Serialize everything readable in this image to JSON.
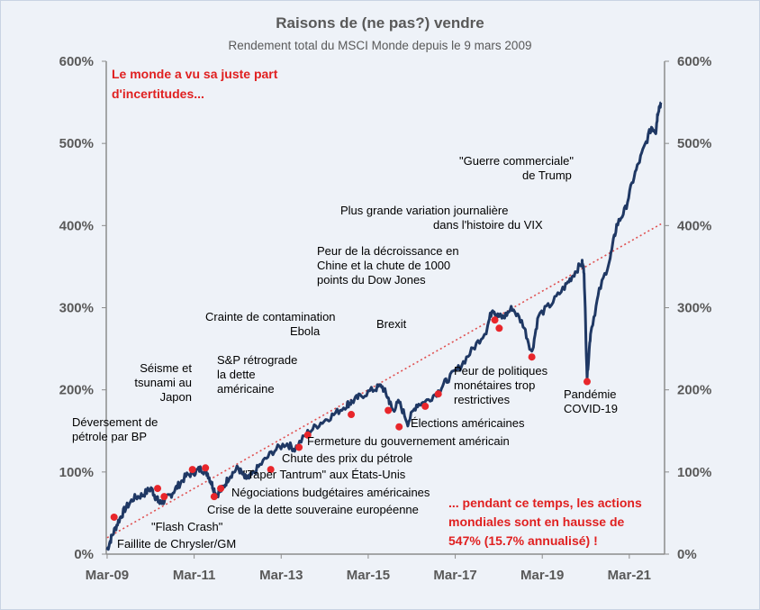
{
  "chart_data": {
    "type": "line",
    "title": "Raisons de (ne pas?) vendre",
    "subtitle": "Rendement total du MSCI Monde depuis le 9 mars 2009",
    "x_tick_labels": [
      "Mar-09",
      "Mar-11",
      "Mar-13",
      "Mar-15",
      "Mar-17",
      "Mar-19",
      "Mar-21"
    ],
    "y_tick_labels": [
      "0%",
      "100%",
      "200%",
      "300%",
      "400%",
      "500%",
      "600%"
    ],
    "ylim": [
      0,
      600
    ],
    "xlim": [
      2009.17,
      2022.0
    ],
    "grid": false,
    "series": [
      {
        "color": "#1f3864",
        "x": [
          2009.19,
          2009.3,
          2009.45,
          2009.6,
          2009.8,
          2010.0,
          2010.2,
          2010.3,
          2010.4,
          2010.5,
          2010.65,
          2010.8,
          2011.0,
          2011.2,
          2011.35,
          2011.5,
          2011.6,
          2011.7,
          2011.85,
          2012.0,
          2012.2,
          2012.35,
          2012.45,
          2012.7,
          2013.0,
          2013.3,
          2013.5,
          2013.8,
          2014.1,
          2014.4,
          2014.7,
          2014.8,
          2015.0,
          2015.3,
          2015.5,
          2015.65,
          2015.75,
          2015.9,
          2016.1,
          2016.3,
          2016.5,
          2016.8,
          2017.0,
          2017.3,
          2017.6,
          2017.9,
          2018.05,
          2018.15,
          2018.3,
          2018.5,
          2018.75,
          2018.95,
          2019.1,
          2019.4,
          2019.7,
          2019.9,
          2020.1,
          2020.15,
          2020.22,
          2020.3,
          2020.5,
          2020.75,
          2020.9,
          2021.1,
          2021.3,
          2021.5,
          2021.7,
          2021.8,
          2021.85,
          2021.92
        ],
        "values": [
          5,
          22,
          40,
          55,
          68,
          72,
          80,
          70,
          62,
          65,
          72,
          82,
          95,
          100,
          104,
          98,
          85,
          72,
          80,
          95,
          105,
          93,
          92,
          108,
          125,
          135,
          128,
          148,
          160,
          170,
          182,
          185,
          192,
          200,
          205,
          190,
          175,
          185,
          160,
          182,
          185,
          198,
          212,
          228,
          250,
          272,
          300,
          290,
          288,
          300,
          280,
          245,
          290,
          305,
          325,
          340,
          355,
          345,
          215,
          270,
          320,
          360,
          400,
          420,
          460,
          490,
          520,
          515,
          540,
          550
        ]
      }
    ],
    "trend": {
      "x": [
        2009.19,
        2021.92
      ],
      "values": [
        20,
        402
      ],
      "color": "#e05050"
    },
    "events": [
      {
        "label": "Faillite de Chrysler/GM",
        "x": 2009.35,
        "y": 45
      },
      {
        "label": "\"Flash Crash\"",
        "x": 2010.35,
        "y": 80
      },
      {
        "label": "Déversement de pétrole par BP",
        "x": 2010.5,
        "y": 70
      },
      {
        "label": "Séisme et tsunami au Japon",
        "x": 2011.15,
        "y": 103
      },
      {
        "label": "Crise de la dette souveraine européenne",
        "x": 2011.45,
        "y": 105
      },
      {
        "label": "Négociations budgétaires américaines",
        "x": 2011.65,
        "y": 70
      },
      {
        "label": "S&P rétrograde la dette américaine",
        "x": 2011.8,
        "y": 80
      },
      {
        "label": "\"Taper Tantrum\" aux États-Unis",
        "x": 2012.95,
        "y": 103
      },
      {
        "label": "Chute des prix du pétrole",
        "x": 2013.6,
        "y": 130
      },
      {
        "label": "Fermeture du gouvernement américain",
        "x": 2013.8,
        "y": 145
      },
      {
        "label": "Crainte de contamination Ebola",
        "x": 2014.8,
        "y": 170
      },
      {
        "label": "Peur de la décroissance en Chine et la chute de 1000 points du Dow Jones",
        "x": 2015.65,
        "y": 175
      },
      {
        "label": "Élections américaines",
        "x": 2015.9,
        "y": 155
      },
      {
        "label": "Brexit",
        "x": 2016.5,
        "y": 180
      },
      {
        "label": "Plus grande variation journalière dans l'histoire du VIX",
        "x": 2018.1,
        "y": 285
      },
      {
        "label": "\"Guerre commerciale\" de Trump",
        "x": 2018.2,
        "y": 275
      },
      {
        "label": "Peur de politiques monétaires trop restrictives",
        "x": 2018.95,
        "y": 240
      },
      {
        "label": "Pandémie COVID-19",
        "x": 2020.22,
        "y": 210
      },
      {
        "label": "",
        "x": 2016.8,
        "y": 195
      }
    ]
  },
  "annotations": {
    "red_top": [
      "Le monde a vu sa juste part",
      "d'incertitudes..."
    ],
    "red_bottom": [
      "... pendant ce temps, les actions",
      "mondiales sont en hausse de",
      "547% (15.7% annualisé) !"
    ],
    "labels": [
      [
        "Faillite de Chrysler/GM"
      ],
      [
        "\"Flash Crash\""
      ],
      [
        "Déversement de",
        "pétrole par BP"
      ],
      [
        "Séisme et",
        "tsunami au",
        "Japon"
      ],
      [
        "Crise de la dette souveraine européenne"
      ],
      [
        "Négociations budgétaires américaines"
      ],
      [
        "S&P rétrograde",
        "la dette",
        "américaine"
      ],
      [
        "\"Taper Tantrum\" aux États-Unis"
      ],
      [
        "Chute des prix du pétrole"
      ],
      [
        "Fermeture du gouvernement américain"
      ],
      [
        "Crainte de contamination",
        "Ebola"
      ],
      [
        "Peur de la décroissance en",
        "Chine et la chute de 1000",
        "points du Dow Jones"
      ],
      [
        "Élections américaines"
      ],
      [
        "Brexit"
      ],
      [
        "Plus grande variation journalière",
        "dans l'histoire du VIX"
      ],
      [
        "\"Guerre commerciale\"",
        "de Trump"
      ],
      [
        "Peur de politiques",
        "monétaires trop",
        "restrictives"
      ],
      [
        "Pandémie",
        "COVID-19"
      ]
    ]
  }
}
